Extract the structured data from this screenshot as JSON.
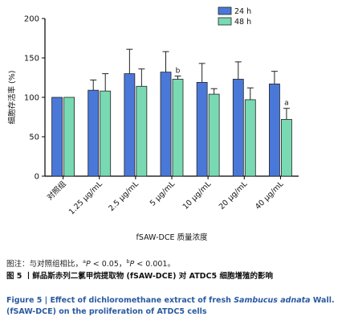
{
  "chart_data": {
    "type": "bar",
    "categories": [
      "对照组",
      "1.25 μg/mL",
      "2.5 μg/mL",
      "5 μg/mL",
      "10 μg/mL",
      "20 μg/mL",
      "40 μg/mL"
    ],
    "series": [
      {
        "name": "24 h",
        "color": "#4a78d8",
        "values": [
          100,
          109,
          130,
          132,
          119,
          123,
          117
        ],
        "errors": [
          0,
          13,
          31,
          26,
          24,
          22,
          16
        ]
      },
      {
        "name": "48 h",
        "color": "#79d9b3",
        "values": [
          100,
          108,
          114,
          123,
          104,
          97,
          72
        ],
        "errors": [
          0,
          22,
          22,
          4,
          7,
          15,
          14
        ]
      }
    ],
    "annotations": [
      {
        "category_index": 3,
        "series_index": 1,
        "text": "b"
      },
      {
        "category_index": 6,
        "series_index": 1,
        "text": "a"
      }
    ],
    "xlabel": "fSAW-DCE 质量浓度",
    "ylabel": "细胞存活率 (%)",
    "ylim": [
      0,
      200
    ],
    "yticks": [
      0,
      50,
      100,
      150,
      200
    ],
    "legend_position": "top-right",
    "grid": false
  },
  "caption": {
    "note_prefix": "图注：与对照组相比，",
    "note_a": "a",
    "note_p": "P",
    "note_mid": " < 0.05，",
    "note_b": "b",
    "note_p2": "P",
    "note_end": " < 0.001。",
    "title_cn": "图 5 丨鲜品斯赤列二氯甲烷提取物 (fSAW-DCE) 对 ATDC5 细胞增殖的影响",
    "title_en_1": "Figure 5 | Effect of dichloromethane extract of fresh ",
    "title_en_species": "Sambucus adnata",
    "title_en_2": " Wall. (fSAW-DCE) on the proliferation of ATDC5 cells"
  }
}
